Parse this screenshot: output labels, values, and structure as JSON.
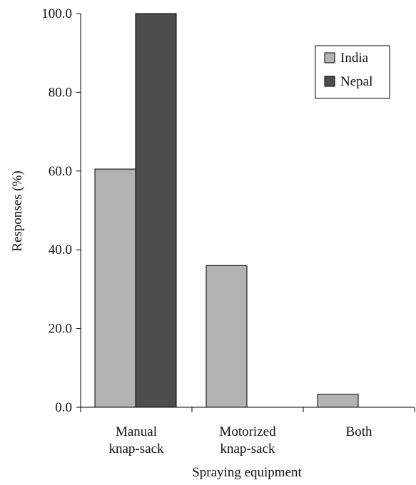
{
  "chart_data": {
    "type": "bar",
    "categories": [
      [
        "Manual",
        "knap-sack"
      ],
      [
        "Motorized",
        "knap-sack"
      ],
      [
        "Both"
      ]
    ],
    "series": [
      {
        "name": "India",
        "values": [
          60.5,
          36.0,
          3.3
        ],
        "color": "#b3b3b3"
      },
      {
        "name": "Nepal",
        "values": [
          100.0,
          0.0,
          0.0
        ],
        "color": "#4d4d4d"
      }
    ],
    "xlabel": "Spraying equipment",
    "ylabel": "Responses (%)",
    "ylim": [
      0,
      100
    ],
    "yticks": [
      "0.0",
      "20.0",
      "40.0",
      "60.0",
      "80.0",
      "100.0"
    ],
    "grid": false,
    "legend_position": "top-right"
  }
}
